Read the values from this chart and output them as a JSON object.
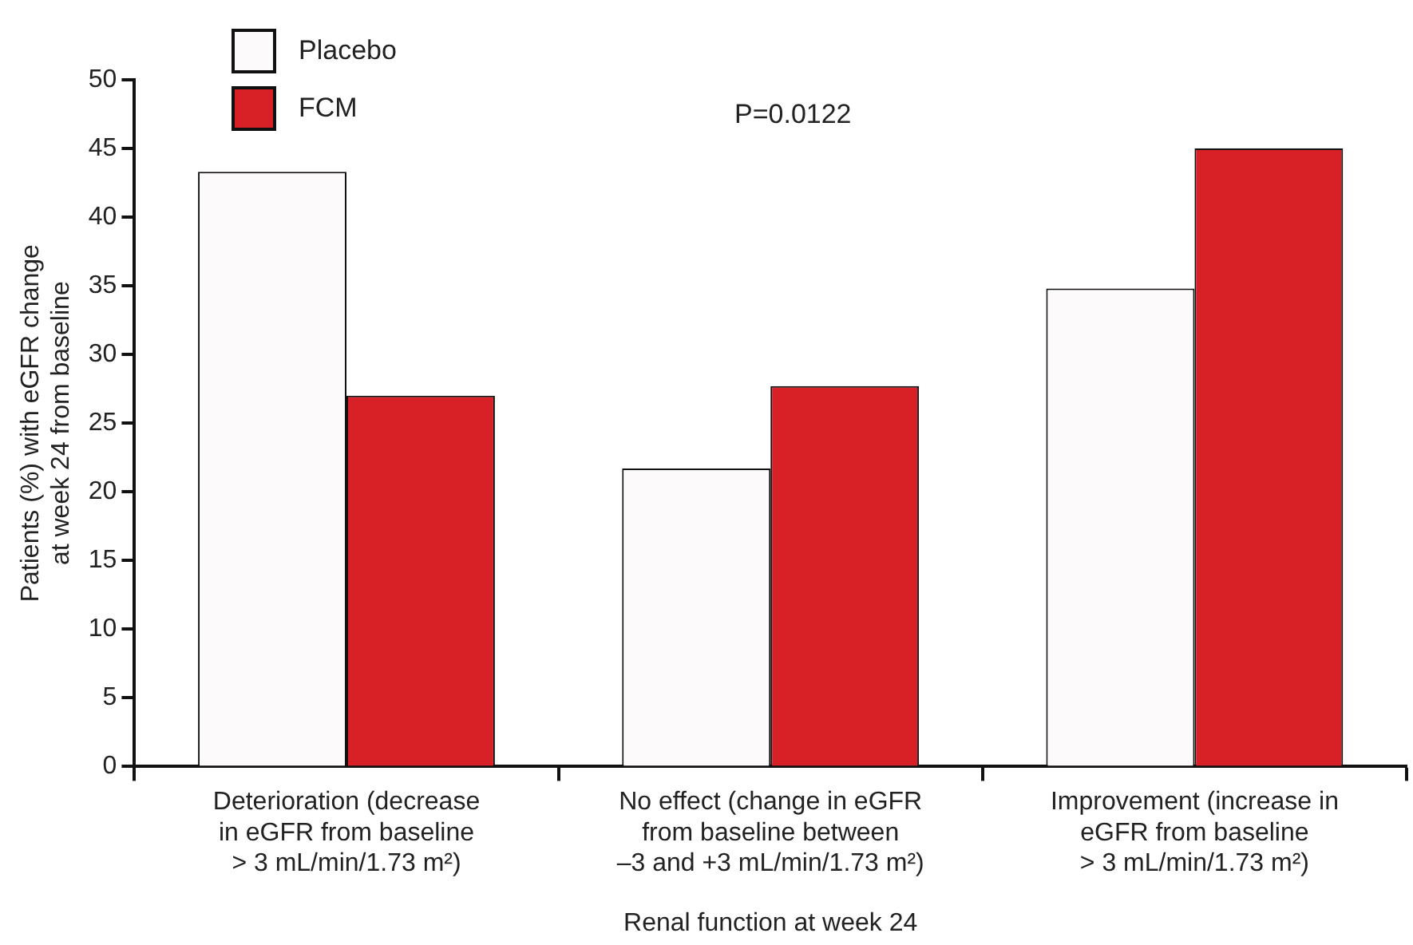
{
  "chart_data": {
    "type": "bar",
    "xlabel": "Renal function at week 24",
    "ylabel": "Patients (%) with eGFR change\nat week 24 from baseline",
    "categories": [
      "Deterioration (decrease\nin eGFR from baseline\n> 3 mL/min/1.73 m²)",
      "No effect (change in eGFR\nfrom baseline between\n–3 and +3 mL/min/1.73 m²)",
      "Improvement (increase in\neGFR from baseline\n> 3 mL/min/1.73 m²)"
    ],
    "series": [
      {
        "name": "Placebo",
        "color": "#fcfafa",
        "values": [
          43.3,
          21.7,
          34.8
        ]
      },
      {
        "name": "FCM",
        "color": "#d82027",
        "values": [
          27.0,
          27.7,
          45.0
        ]
      }
    ],
    "ylim": [
      0,
      50
    ],
    "yticks": [
      0,
      5,
      10,
      15,
      20,
      25,
      30,
      35,
      40,
      45,
      50
    ],
    "grid": false,
    "legend": "top left",
    "annotations": [
      "P=0.0122"
    ]
  }
}
